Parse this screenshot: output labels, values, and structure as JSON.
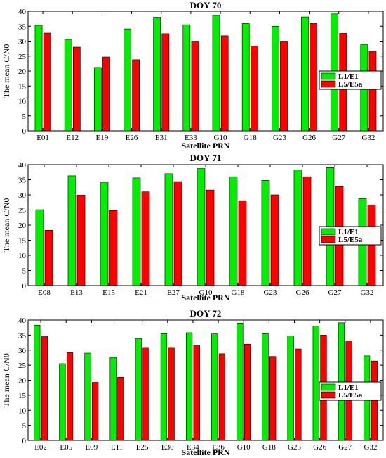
{
  "colors": {
    "l1": "#00ee00",
    "l5": "#ff0000"
  },
  "chart_data": [
    {
      "type": "bar",
      "title": "DOY 70",
      "xlabel": "Satellite PRN",
      "ylabel": "The mean C/N0",
      "ylim": [
        0,
        40
      ],
      "yticks": [
        0,
        5,
        10,
        15,
        20,
        25,
        30,
        35,
        40
      ],
      "categories": [
        "E01",
        "E12",
        "E19",
        "E26",
        "E31",
        "E33",
        "G10",
        "G18",
        "G23",
        "G26",
        "G27",
        "G32"
      ],
      "series": [
        {
          "name": "L1/E1",
          "values": [
            35.3,
            30.6,
            21.2,
            34.1,
            38.0,
            35.5,
            38.6,
            35.9,
            35.0,
            38.1,
            39.1,
            28.8
          ]
        },
        {
          "name": "L5/E5a",
          "values": [
            32.7,
            28.0,
            24.7,
            23.8,
            32.5,
            30.0,
            31.8,
            28.3,
            30.0,
            35.9,
            32.6,
            26.6
          ]
        }
      ],
      "legend": "right"
    },
    {
      "type": "bar",
      "title": "DOY 71",
      "xlabel": "Satellite PRN",
      "ylabel": "The mean C/N0",
      "ylim": [
        0,
        40
      ],
      "yticks": [
        0,
        5,
        10,
        15,
        20,
        25,
        30,
        35,
        40
      ],
      "categories": [
        "E08",
        "E13",
        "E15",
        "E21",
        "E27",
        "G10",
        "G18",
        "G23",
        "G26",
        "G27",
        "G32"
      ],
      "series": [
        {
          "name": "L1/E1",
          "values": [
            25.1,
            36.3,
            34.2,
            35.6,
            37.0,
            38.7,
            36.0,
            34.8,
            38.2,
            39.0,
            28.8
          ]
        },
        {
          "name": "L5/E5a",
          "values": [
            18.3,
            29.9,
            24.8,
            31.0,
            34.4,
            31.6,
            28.1,
            30.0,
            36.0,
            32.7,
            26.7
          ]
        }
      ],
      "legend": "right"
    },
    {
      "type": "bar",
      "title": "DOY 72",
      "xlabel": "Satellite PRN",
      "ylabel": "The mean C/N0",
      "ylim": [
        0,
        40
      ],
      "yticks": [
        0,
        5,
        10,
        15,
        20,
        25,
        30,
        35,
        40
      ],
      "categories": [
        "E02",
        "E05",
        "E09",
        "E11",
        "E25",
        "E30",
        "E34",
        "E36",
        "G10",
        "G18",
        "G23",
        "G26",
        "G27",
        "G32"
      ],
      "series": [
        {
          "name": "L1/E1",
          "values": [
            38.3,
            25.5,
            29.0,
            27.6,
            33.9,
            35.5,
            35.8,
            35.4,
            39.0,
            35.5,
            34.8,
            38.0,
            39.1,
            28.1
          ]
        },
        {
          "name": "L5/E5a",
          "values": [
            34.5,
            29.2,
            19.3,
            21.0,
            30.9,
            30.9,
            31.6,
            28.8,
            32.0,
            27.9,
            30.4,
            35.0,
            33.1,
            26.4
          ]
        }
      ],
      "legend": "right"
    }
  ]
}
